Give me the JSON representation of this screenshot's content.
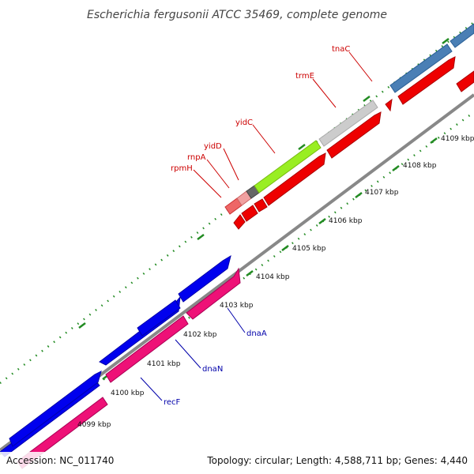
{
  "title": "Escherichia fergusonii ATCC 35469, complete genome",
  "footer": {
    "accession": "Accession: NC_011740",
    "summary": "Topology: circular; Length: 4,588,711 bp; Genes: 4,440"
  },
  "ticks": [
    "4099 kbp",
    "4100 kbp",
    "4101 kbp",
    "4102 kbp",
    "4103 kbp",
    "4104 kbp",
    "4105 kbp",
    "4106 kbp",
    "4107 kbp",
    "4108 kbp",
    "4109 kbp"
  ],
  "genes": [
    {
      "name": "recF",
      "color": "#0000aa"
    },
    {
      "name": "dnaN",
      "color": "#0000aa"
    },
    {
      "name": "dnaA",
      "color": "#0000aa"
    },
    {
      "name": "rpmH",
      "color": "#cc0000"
    },
    {
      "name": "rnpA",
      "color": "#cc0000"
    },
    {
      "name": "yidD",
      "color": "#cc0000"
    },
    {
      "name": "yidC",
      "color": "#cc0000"
    },
    {
      "name": "trmE",
      "color": "#cc0000"
    },
    {
      "name": "tnaC",
      "color": "#cc0000"
    }
  ],
  "colors": {
    "forward_cds": "#0000ee",
    "reverse_cds": "#ee1177",
    "red_cds": "#ee0000",
    "steel_cds": "#4a7fb5",
    "backbone": "#888888",
    "tick": "#228b22"
  }
}
